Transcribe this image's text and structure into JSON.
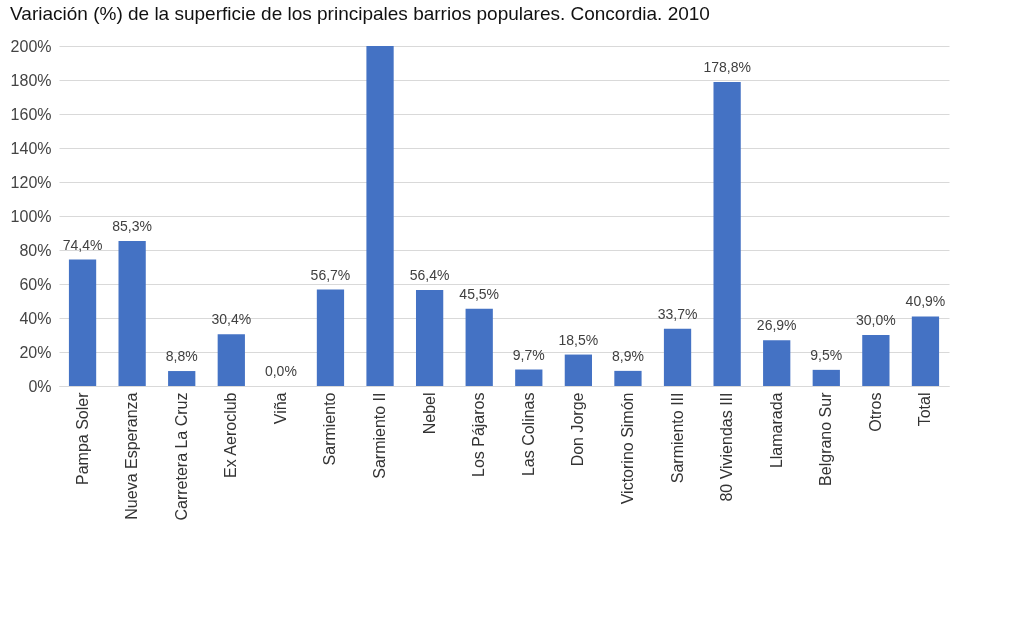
{
  "chart_data": {
    "type": "bar",
    "title": "Variación (%) de la superficie de los principales barrios populares. Concordia. 2010",
    "categories": [
      "Pampa Soler",
      "Nueva Esperanza",
      "Carretera La Cruz",
      "Ex Aeroclub",
      "Viña",
      "Sarmiento",
      "Sarmiento II",
      "Nebel",
      "Los Pájaros",
      "Las Colinas",
      "Don Jorge",
      "Victorino Simón",
      "Sarmiento III",
      "80 Viviendas III",
      "Llamarada",
      "Belgrano Sur",
      "Otros",
      "Total"
    ],
    "values": [
      74.4,
      85.3,
      8.8,
      30.4,
      0.0,
      56.7,
      200,
      56.4,
      45.5,
      9.7,
      18.5,
      8.9,
      33.7,
      178.8,
      26.9,
      9.5,
      30.0,
      40.9
    ],
    "value_labels": [
      "74,4%",
      "85,3%",
      "8,8%",
      "30,4%",
      "0,0%",
      "56,7%",
      null,
      "56,4%",
      "45,5%",
      "9,7%",
      "18,5%",
      "8,9%",
      "33,7%",
      "178,8%",
      "26,9%",
      "9,5%",
      "30,0%",
      "40,9%"
    ],
    "color": "#4472c4",
    "ylim": [
      0,
      200
    ],
    "yticks": [
      {
        "value": 0,
        "label": "0%"
      },
      {
        "value": 20,
        "label": "20%"
      },
      {
        "value": 40,
        "label": "40%"
      },
      {
        "value": 60,
        "label": "60%"
      },
      {
        "value": 80,
        "label": "80%"
      },
      {
        "value": 100,
        "label": "100%"
      },
      {
        "value": 120,
        "label": "120%"
      },
      {
        "value": 140,
        "label": "140%"
      },
      {
        "value": 160,
        "label": "160%"
      },
      {
        "value": 180,
        "label": "180%"
      },
      {
        "value": 200,
        "label": "200%"
      }
    ],
    "grid": "y"
  }
}
